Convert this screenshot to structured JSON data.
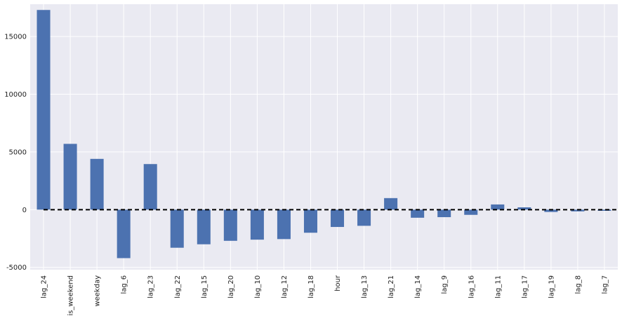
{
  "chart_data": {
    "type": "bar",
    "title": "",
    "xlabel": "",
    "ylabel": "",
    "categories": [
      "lag_24",
      "is_weekend",
      "weekday",
      "lag_6",
      "lag_23",
      "lag_22",
      "lag_15",
      "lag_20",
      "lag_10",
      "lag_12",
      "lag_18",
      "hour",
      "lag_13",
      "lag_21",
      "lag_14",
      "lag_9",
      "lag_16",
      "lag_11",
      "lag_17",
      "lag_19",
      "lag_8",
      "lag_7"
    ],
    "values": [
      17300,
      5700,
      4400,
      -4200,
      3950,
      -3300,
      -3000,
      -2700,
      -2600,
      -2550,
      -2000,
      -1500,
      -1400,
      1000,
      -700,
      -650,
      -450,
      450,
      200,
      -200,
      -150,
      -100
    ],
    "ylim": [
      -5200,
      17800
    ],
    "yticks": [
      -5000,
      0,
      5000,
      10000,
      15000
    ],
    "ytick_labels": [
      "-5000",
      "0",
      "5000",
      "10000",
      "15000"
    ],
    "grid": true,
    "reference_line": {
      "y": 0,
      "style": "dashed",
      "color": "#000000"
    },
    "colors": {
      "bar": "#4c72b0",
      "plot_background": "#eaeaf2",
      "grid": "#ffffff"
    }
  }
}
